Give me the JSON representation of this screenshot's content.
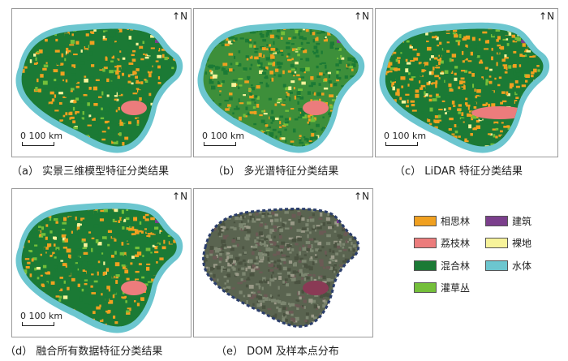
{
  "panels": [
    {
      "id": "a",
      "caption": "（a） 实景三维模型特征分类结果",
      "north": "N",
      "scale": "0 100 km"
    },
    {
      "id": "b",
      "caption": "（b） 多光谱特征分类结果",
      "north": "N",
      "scale": "0 100 km"
    },
    {
      "id": "c",
      "caption": "（c） LiDAR 特征分类结果",
      "north": "N",
      "scale": "0 100 km"
    },
    {
      "id": "d",
      "caption": "（d） 融合所有数据特征分类结果",
      "north": "N",
      "scale": "0 100 km"
    },
    {
      "id": "e",
      "caption": "（e） DOM 及样本点分布",
      "north": "N",
      "scale": ""
    }
  ],
  "legend": [
    {
      "label": "相思林",
      "color": "#f0a020"
    },
    {
      "label": "建筑",
      "color": "#7b3f8c"
    },
    {
      "label": "荔枝林",
      "color": "#ec7c7c"
    },
    {
      "label": "裸地",
      "color": "#f7f39a"
    },
    {
      "label": "混合林",
      "color": "#1b7a35"
    },
    {
      "label": "水体",
      "color": "#6cc6cf"
    },
    {
      "label": "灌草丛",
      "color": "#74bf3a"
    }
  ]
}
